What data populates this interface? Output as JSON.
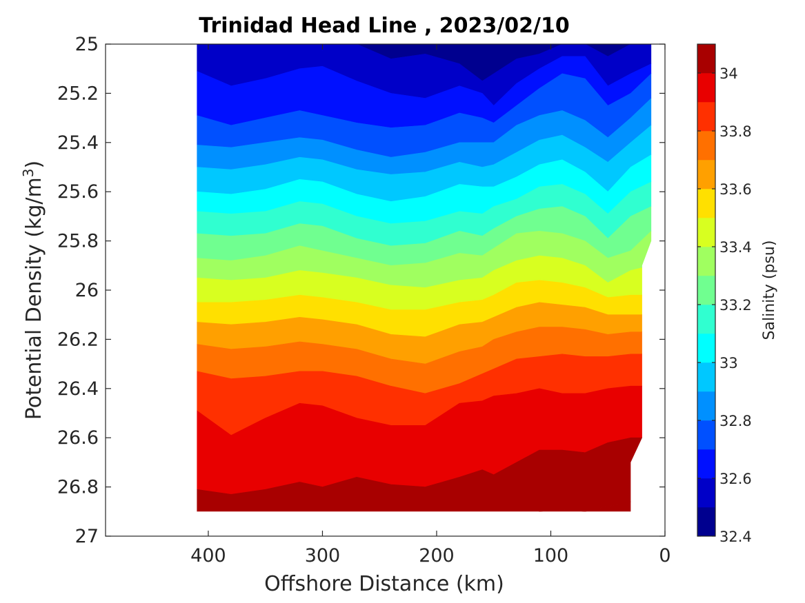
{
  "chart_data": {
    "type": "filled-contour",
    "title": "Trinidad Head Line , 2023/02/10",
    "xlabel": "Offshore Distance (km)",
    "ylabel_main": "Potential Density (kg/m",
    "ylabel_sup": "3",
    "ylabel_end": ")",
    "xlim": [
      490,
      0
    ],
    "ylim": [
      25,
      27
    ],
    "x_reversed": true,
    "y_reversed": true,
    "xticks": [
      400,
      300,
      200,
      100,
      0
    ],
    "yticks": [
      25,
      25.2,
      25.4,
      25.6,
      25.8,
      26,
      26.2,
      26.4,
      26.6,
      26.8,
      27
    ],
    "xtick_labels": [
      "400",
      "300",
      "200",
      "100",
      "0"
    ],
    "ytick_labels": [
      "25",
      "25.2",
      "25.4",
      "25.6",
      "25.8",
      "26",
      "26.2",
      "26.4",
      "26.6",
      "26.8",
      "27"
    ],
    "data_extent": {
      "x_offshore_max": 410,
      "x_inshore_min": 12,
      "sigma_min": 25,
      "sigma_max": 26.9,
      "inshore_boundary": [
        {
          "sigma": 25.0,
          "x": 12
        },
        {
          "sigma": 25.8,
          "x": 12
        },
        {
          "sigma": 25.9,
          "x": 20
        },
        {
          "sigma": 26.6,
          "x": 20
        },
        {
          "sigma": 26.7,
          "x": 30
        },
        {
          "sigma": 26.9,
          "x": 30
        }
      ]
    },
    "contour_levels": [
      32.4,
      32.5,
      32.6,
      32.7,
      32.8,
      32.9,
      33.0,
      33.1,
      33.2,
      33.3,
      33.4,
      33.5,
      33.6,
      33.7,
      33.8,
      33.9,
      34.0,
      34.1
    ],
    "level_colors": [
      "#00008f",
      "#0000c8",
      "#0010ff",
      "#0050ff",
      "#0090ff",
      "#00c8ff",
      "#00ffff",
      "#30ffd0",
      "#70ff90",
      "#a0ff60",
      "#d8ff20",
      "#ffe000",
      "#ffa000",
      "#ff7000",
      "#ff3000",
      "#e80000",
      "#a80000"
    ],
    "isopleths": {
      "x": [
        410,
        380,
        350,
        320,
        300,
        270,
        240,
        210,
        180,
        160,
        150,
        130,
        110,
        90,
        70,
        50,
        30,
        12
      ],
      "lines": [
        {
          "salinity": 32.5,
          "sigma": [
            25.0,
            25.0,
            25.0,
            25.0,
            25.0,
            25.0,
            25.06,
            25.04,
            25.08,
            25.15,
            25.12,
            25.06,
            25.04,
            25.0,
            25.0,
            25.05,
            25.0,
            25.0
          ]
        },
        {
          "salinity": 32.6,
          "sigma": [
            25.11,
            25.17,
            25.14,
            25.1,
            25.09,
            25.15,
            25.2,
            25.22,
            25.17,
            25.2,
            25.25,
            25.16,
            25.1,
            25.05,
            25.05,
            25.17,
            25.12,
            25.08
          ]
        },
        {
          "salinity": 32.7,
          "sigma": [
            25.29,
            25.33,
            25.3,
            25.27,
            25.29,
            25.32,
            25.34,
            25.33,
            25.28,
            25.3,
            25.32,
            25.25,
            25.18,
            25.12,
            25.14,
            25.25,
            25.2,
            25.12
          ]
        },
        {
          "salinity": 32.8,
          "sigma": [
            25.41,
            25.42,
            25.4,
            25.38,
            25.39,
            25.43,
            25.46,
            25.44,
            25.4,
            25.4,
            25.4,
            25.33,
            25.29,
            25.27,
            25.31,
            25.38,
            25.3,
            25.22
          ]
        },
        {
          "salinity": 32.9,
          "sigma": [
            25.5,
            25.51,
            25.49,
            25.46,
            25.47,
            25.51,
            25.53,
            25.52,
            25.48,
            25.5,
            25.49,
            25.44,
            25.39,
            25.37,
            25.42,
            25.48,
            25.4,
            25.33
          ]
        },
        {
          "salinity": 33.0,
          "sigma": [
            25.6,
            25.61,
            25.59,
            25.55,
            25.56,
            25.61,
            25.64,
            25.62,
            25.57,
            25.58,
            25.58,
            25.54,
            25.49,
            25.47,
            25.52,
            25.6,
            25.5,
            25.45
          ]
        },
        {
          "salinity": 33.1,
          "sigma": [
            25.68,
            25.69,
            25.68,
            25.64,
            25.65,
            25.7,
            25.73,
            25.72,
            25.68,
            25.69,
            25.66,
            25.63,
            25.58,
            25.57,
            25.61,
            25.69,
            25.6,
            25.56
          ]
        },
        {
          "salinity": 33.2,
          "sigma": [
            25.77,
            25.78,
            25.77,
            25.73,
            25.74,
            25.79,
            25.82,
            25.81,
            25.76,
            25.78,
            25.75,
            25.7,
            25.67,
            25.66,
            25.7,
            25.79,
            25.7,
            25.66
          ]
        },
        {
          "salinity": 33.3,
          "sigma": [
            25.87,
            25.88,
            25.86,
            25.82,
            25.84,
            25.87,
            25.9,
            25.89,
            25.85,
            25.86,
            25.83,
            25.77,
            25.76,
            25.77,
            25.8,
            25.87,
            25.84,
            25.76
          ]
        },
        {
          "salinity": 33.4,
          "sigma": [
            25.95,
            25.96,
            25.95,
            25.92,
            25.93,
            25.95,
            25.98,
            25.99,
            25.96,
            25.95,
            25.92,
            25.88,
            25.86,
            25.87,
            25.9,
            25.97,
            25.92,
            25.9
          ]
        },
        {
          "salinity": 33.5,
          "sigma": [
            26.05,
            26.05,
            26.04,
            26.02,
            26.03,
            26.05,
            26.08,
            26.08,
            26.05,
            26.04,
            26.02,
            25.97,
            25.96,
            25.97,
            25.99,
            26.03,
            26.02,
            26.02
          ]
        },
        {
          "salinity": 33.6,
          "sigma": [
            26.13,
            26.14,
            26.13,
            26.11,
            26.12,
            26.14,
            26.18,
            26.19,
            26.14,
            26.13,
            26.11,
            26.07,
            26.05,
            26.06,
            26.07,
            26.1,
            26.1,
            26.1
          ]
        },
        {
          "salinity": 33.7,
          "sigma": [
            26.22,
            26.24,
            26.23,
            26.21,
            26.22,
            26.24,
            26.28,
            26.3,
            26.25,
            26.23,
            26.2,
            26.17,
            26.15,
            26.15,
            26.16,
            26.18,
            26.17,
            26.17
          ]
        },
        {
          "salinity": 33.8,
          "sigma": [
            26.33,
            26.36,
            26.35,
            26.33,
            26.33,
            26.35,
            26.39,
            26.42,
            26.38,
            26.34,
            26.32,
            26.28,
            26.27,
            26.26,
            26.27,
            26.27,
            26.26,
            26.26
          ]
        },
        {
          "salinity": 33.9,
          "sigma": [
            26.49,
            26.59,
            26.52,
            26.46,
            26.47,
            26.52,
            26.55,
            26.55,
            26.46,
            26.45,
            26.43,
            26.42,
            26.4,
            26.42,
            26.42,
            26.4,
            26.39,
            26.39
          ]
        },
        {
          "salinity": 34.0,
          "sigma": [
            26.81,
            26.83,
            26.81,
            26.78,
            26.8,
            26.76,
            26.79,
            26.8,
            26.76,
            26.73,
            26.75,
            26.7,
            26.65,
            26.65,
            26.66,
            26.62,
            26.6,
            26.6
          ]
        },
        {
          "salinity": 34.1,
          "sigma": [
            26.95,
            26.95,
            26.95,
            26.95,
            26.95,
            26.95,
            26.95,
            26.95,
            26.95,
            26.95,
            26.95,
            26.95,
            26.9,
            26.89,
            26.9,
            26.88,
            26.86,
            26.86
          ]
        }
      ]
    },
    "colorbar": {
      "label": "Salinity (psu)",
      "range": [
        32.4,
        34.1
      ],
      "ticks": [
        32.4,
        32.6,
        32.8,
        33.0,
        33.2,
        33.4,
        33.6,
        33.8,
        34.0
      ],
      "tick_labels": [
        "32.4",
        "32.6",
        "32.8",
        "33",
        "33.2",
        "33.4",
        "33.6",
        "33.8",
        "34"
      ]
    }
  }
}
